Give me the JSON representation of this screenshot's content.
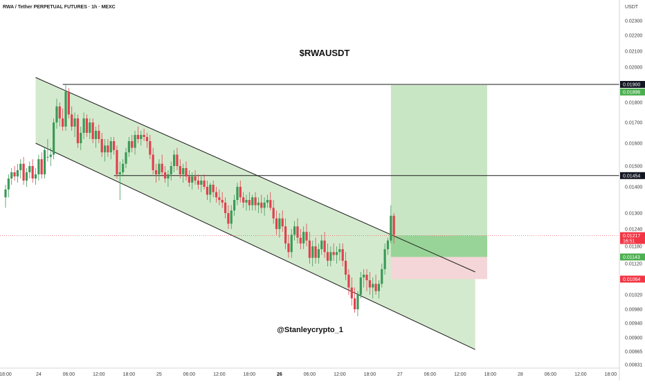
{
  "header": {
    "title": "RWA / Tether PERPETUAL FUTURES · 1h · MEXC",
    "currency": "USDT"
  },
  "chart_data": {
    "type": "candlestick",
    "title": "$RWAUSDT",
    "watermark": "@Stanleycrypto_1",
    "ylim": [
      0.0081,
      0.0241
    ],
    "y_ticks": [
      0.00831,
      0.00865,
      0.009,
      0.0094,
      0.0098,
      0.0102,
      0.0106,
      0.0112,
      0.0118,
      0.0124,
      0.013,
      0.014,
      0.015,
      0.016,
      0.017,
      0.018,
      0.019,
      0.02,
      0.021,
      0.022,
      0.023
    ],
    "y_tick_labels": [
      "0.00831",
      "0.00865",
      "0.00900",
      "0.00940",
      "0.00980",
      "0.01020",
      "0.01060",
      "0.01120",
      "0.01180",
      "0.01240",
      "0.01300",
      "0.01400",
      "0.01500",
      "0.01600",
      "0.01700",
      "0.01800",
      "0.01900",
      "0.02000",
      "0.02100",
      "0.02200",
      "0.02300"
    ],
    "x_labels": [
      {
        "text": "18:00",
        "i": 0,
        "bold": false
      },
      {
        "text": "24",
        "i": 11,
        "bold": false
      },
      {
        "text": "06:00",
        "i": 21,
        "bold": false
      },
      {
        "text": "12:00",
        "i": 31,
        "bold": false
      },
      {
        "text": "18:00",
        "i": 41,
        "bold": false
      },
      {
        "text": "25",
        "i": 51,
        "bold": false
      },
      {
        "text": "06:00",
        "i": 61,
        "bold": false
      },
      {
        "text": "12:00",
        "i": 71,
        "bold": false
      },
      {
        "text": "18:00",
        "i": 81,
        "bold": false
      },
      {
        "text": "26",
        "i": 91,
        "bold": true
      },
      {
        "text": "06:00",
        "i": 101,
        "bold": false
      },
      {
        "text": "12:00",
        "i": 111,
        "bold": false
      },
      {
        "text": "18:00",
        "i": 121,
        "bold": false
      },
      {
        "text": "27",
        "i": 131,
        "bold": false
      },
      {
        "text": "06:00",
        "i": 141,
        "bold": false
      },
      {
        "text": "12:00",
        "i": 151,
        "bold": false
      },
      {
        "text": "18:00",
        "i": 161,
        "bold": false
      },
      {
        "text": "28",
        "i": 171,
        "bold": false
      },
      {
        "text": "06:00",
        "i": 181,
        "bold": false
      },
      {
        "text": "12:00",
        "i": 191,
        "bold": false
      },
      {
        "text": "18:00",
        "i": 201,
        "bold": false
      }
    ],
    "ohlc": [
      {
        "i": 0,
        "o": 0.0136,
        "h": 0.0141,
        "l": 0.0132,
        "c": 0.0139
      },
      {
        "i": 1,
        "o": 0.0139,
        "h": 0.0146,
        "l": 0.0136,
        "c": 0.0144
      },
      {
        "i": 2,
        "o": 0.0144,
        "h": 0.0149,
        "l": 0.0141,
        "c": 0.0147
      },
      {
        "i": 3,
        "o": 0.0147,
        "h": 0.015,
        "l": 0.0143,
        "c": 0.0145
      },
      {
        "i": 4,
        "o": 0.0145,
        "h": 0.0151,
        "l": 0.0142,
        "c": 0.0148
      },
      {
        "i": 5,
        "o": 0.0148,
        "h": 0.0153,
        "l": 0.0144,
        "c": 0.0151
      },
      {
        "i": 6,
        "o": 0.0151,
        "h": 0.0154,
        "l": 0.0141,
        "c": 0.0143
      },
      {
        "i": 7,
        "o": 0.0143,
        "h": 0.0149,
        "l": 0.014,
        "c": 0.0147
      },
      {
        "i": 8,
        "o": 0.0147,
        "h": 0.0152,
        "l": 0.0144,
        "c": 0.015
      },
      {
        "i": 9,
        "o": 0.015,
        "h": 0.0153,
        "l": 0.0142,
        "c": 0.0144
      },
      {
        "i": 10,
        "o": 0.0144,
        "h": 0.0149,
        "l": 0.0141,
        "c": 0.0146
      },
      {
        "i": 11,
        "o": 0.0146,
        "h": 0.0155,
        "l": 0.0143,
        "c": 0.0153
      },
      {
        "i": 12,
        "o": 0.0153,
        "h": 0.0156,
        "l": 0.0144,
        "c": 0.0146
      },
      {
        "i": 13,
        "o": 0.0146,
        "h": 0.0158,
        "l": 0.0144,
        "c": 0.0157
      },
      {
        "i": 14,
        "o": 0.0154,
        "h": 0.0162,
        "l": 0.0152,
        "c": 0.0154
      },
      {
        "i": 15,
        "o": 0.0154,
        "h": 0.0158,
        "l": 0.015,
        "c": 0.0155
      },
      {
        "i": 16,
        "o": 0.0155,
        "h": 0.0172,
        "l": 0.0153,
        "c": 0.017
      },
      {
        "i": 17,
        "o": 0.017,
        "h": 0.0182,
        "l": 0.0167,
        "c": 0.0178
      },
      {
        "i": 18,
        "o": 0.0178,
        "h": 0.018,
        "l": 0.0168,
        "c": 0.0172
      },
      {
        "i": 19,
        "o": 0.0172,
        "h": 0.0177,
        "l": 0.0166,
        "c": 0.0168
      },
      {
        "i": 20,
        "o": 0.0168,
        "h": 0.019,
        "l": 0.0166,
        "c": 0.0186
      },
      {
        "i": 21,
        "o": 0.0186,
        "h": 0.0188,
        "l": 0.0172,
        "c": 0.0174
      },
      {
        "i": 22,
        "o": 0.0174,
        "h": 0.0178,
        "l": 0.0166,
        "c": 0.0168
      },
      {
        "i": 23,
        "o": 0.0168,
        "h": 0.0175,
        "l": 0.0163,
        "c": 0.0172
      },
      {
        "i": 24,
        "o": 0.0172,
        "h": 0.0174,
        "l": 0.0158,
        "c": 0.016
      },
      {
        "i": 25,
        "o": 0.016,
        "h": 0.0168,
        "l": 0.0157,
        "c": 0.0165
      },
      {
        "i": 26,
        "o": 0.0165,
        "h": 0.0175,
        "l": 0.0162,
        "c": 0.0172
      },
      {
        "i": 27,
        "o": 0.0172,
        "h": 0.0174,
        "l": 0.0163,
        "c": 0.0165
      },
      {
        "i": 28,
        "o": 0.0165,
        "h": 0.0172,
        "l": 0.0162,
        "c": 0.017
      },
      {
        "i": 29,
        "o": 0.017,
        "h": 0.0172,
        "l": 0.016,
        "c": 0.0162
      },
      {
        "i": 30,
        "o": 0.0162,
        "h": 0.0168,
        "l": 0.0158,
        "c": 0.0166
      },
      {
        "i": 31,
        "o": 0.0166,
        "h": 0.0169,
        "l": 0.016,
        "c": 0.0162
      },
      {
        "i": 32,
        "o": 0.0162,
        "h": 0.0165,
        "l": 0.0154,
        "c": 0.0156
      },
      {
        "i": 33,
        "o": 0.0156,
        "h": 0.0162,
        "l": 0.0152,
        "c": 0.0159
      },
      {
        "i": 34,
        "o": 0.0159,
        "h": 0.0162,
        "l": 0.0154,
        "c": 0.0156
      },
      {
        "i": 35,
        "o": 0.0156,
        "h": 0.0163,
        "l": 0.0153,
        "c": 0.0161
      },
      {
        "i": 36,
        "o": 0.0161,
        "h": 0.0163,
        "l": 0.0155,
        "c": 0.0157
      },
      {
        "i": 37,
        "o": 0.0157,
        "h": 0.0159,
        "l": 0.0144,
        "c": 0.0146
      },
      {
        "i": 38,
        "o": 0.0146,
        "h": 0.0152,
        "l": 0.0135,
        "c": 0.0147
      },
      {
        "i": 39,
        "o": 0.0147,
        "h": 0.0153,
        "l": 0.0145,
        "c": 0.0151
      },
      {
        "i": 40,
        "o": 0.0151,
        "h": 0.0158,
        "l": 0.0149,
        "c": 0.0156
      },
      {
        "i": 41,
        "o": 0.0156,
        "h": 0.0163,
        "l": 0.0154,
        "c": 0.0161
      },
      {
        "i": 42,
        "o": 0.0161,
        "h": 0.0164,
        "l": 0.0156,
        "c": 0.0158
      },
      {
        "i": 43,
        "o": 0.0158,
        "h": 0.0166,
        "l": 0.0155,
        "c": 0.0164
      },
      {
        "i": 44,
        "o": 0.0164,
        "h": 0.0168,
        "l": 0.016,
        "c": 0.0162
      },
      {
        "i": 45,
        "o": 0.0162,
        "h": 0.0166,
        "l": 0.0159,
        "c": 0.0164
      },
      {
        "i": 46,
        "o": 0.0164,
        "h": 0.0167,
        "l": 0.0161,
        "c": 0.0163
      },
      {
        "i": 47,
        "o": 0.0163,
        "h": 0.0165,
        "l": 0.0158,
        "c": 0.0161
      },
      {
        "i": 48,
        "o": 0.0161,
        "h": 0.0164,
        "l": 0.0153,
        "c": 0.0155
      },
      {
        "i": 49,
        "o": 0.0155,
        "h": 0.0158,
        "l": 0.0146,
        "c": 0.0148
      },
      {
        "i": 50,
        "o": 0.0148,
        "h": 0.0151,
        "l": 0.0142,
        "c": 0.0146
      },
      {
        "i": 51,
        "o": 0.0146,
        "h": 0.0153,
        "l": 0.0143,
        "c": 0.0151
      },
      {
        "i": 52,
        "o": 0.0151,
        "h": 0.0155,
        "l": 0.0145,
        "c": 0.0147
      },
      {
        "i": 53,
        "o": 0.0147,
        "h": 0.015,
        "l": 0.0142,
        "c": 0.0144
      },
      {
        "i": 54,
        "o": 0.0144,
        "h": 0.0148,
        "l": 0.014,
        "c": 0.0146
      },
      {
        "i": 55,
        "o": 0.0146,
        "h": 0.0152,
        "l": 0.0143,
        "c": 0.015
      },
      {
        "i": 56,
        "o": 0.015,
        "h": 0.0157,
        "l": 0.0147,
        "c": 0.0155
      },
      {
        "i": 57,
        "o": 0.0155,
        "h": 0.0158,
        "l": 0.0148,
        "c": 0.015
      },
      {
        "i": 58,
        "o": 0.015,
        "h": 0.0153,
        "l": 0.0144,
        "c": 0.0146
      },
      {
        "i": 59,
        "o": 0.0146,
        "h": 0.0151,
        "l": 0.0142,
        "c": 0.0149
      },
      {
        "i": 60,
        "o": 0.0149,
        "h": 0.0152,
        "l": 0.0143,
        "c": 0.0145
      },
      {
        "i": 61,
        "o": 0.0145,
        "h": 0.0148,
        "l": 0.014,
        "c": 0.0142
      },
      {
        "i": 62,
        "o": 0.0142,
        "h": 0.0147,
        "l": 0.0139,
        "c": 0.0145
      },
      {
        "i": 63,
        "o": 0.0145,
        "h": 0.0148,
        "l": 0.0141,
        "c": 0.0143
      },
      {
        "i": 64,
        "o": 0.0143,
        "h": 0.0146,
        "l": 0.0139,
        "c": 0.0141
      },
      {
        "i": 65,
        "o": 0.0141,
        "h": 0.0145,
        "l": 0.0138,
        "c": 0.0143
      },
      {
        "i": 66,
        "o": 0.0143,
        "h": 0.0146,
        "l": 0.0139,
        "c": 0.014
      },
      {
        "i": 67,
        "o": 0.014,
        "h": 0.0143,
        "l": 0.0135,
        "c": 0.0137
      },
      {
        "i": 68,
        "o": 0.0137,
        "h": 0.0142,
        "l": 0.0134,
        "c": 0.0141
      },
      {
        "i": 69,
        "o": 0.0141,
        "h": 0.0143,
        "l": 0.0136,
        "c": 0.0138
      },
      {
        "i": 70,
        "o": 0.0138,
        "h": 0.014,
        "l": 0.0134,
        "c": 0.0136
      },
      {
        "i": 71,
        "o": 0.0136,
        "h": 0.0139,
        "l": 0.0133,
        "c": 0.0135
      },
      {
        "i": 72,
        "o": 0.0135,
        "h": 0.0138,
        "l": 0.0132,
        "c": 0.0134
      },
      {
        "i": 73,
        "o": 0.0134,
        "h": 0.0136,
        "l": 0.0128,
        "c": 0.013
      },
      {
        "i": 74,
        "o": 0.013,
        "h": 0.0133,
        "l": 0.0124,
        "c": 0.0126
      },
      {
        "i": 75,
        "o": 0.0126,
        "h": 0.0133,
        "l": 0.0124,
        "c": 0.0131
      },
      {
        "i": 76,
        "o": 0.0131,
        "h": 0.0137,
        "l": 0.0129,
        "c": 0.0135
      },
      {
        "i": 77,
        "o": 0.0135,
        "h": 0.0142,
        "l": 0.0133,
        "c": 0.014
      },
      {
        "i": 78,
        "o": 0.014,
        "h": 0.0143,
        "l": 0.0134,
        "c": 0.0136
      },
      {
        "i": 79,
        "o": 0.0136,
        "h": 0.0138,
        "l": 0.0132,
        "c": 0.0134
      },
      {
        "i": 80,
        "o": 0.0134,
        "h": 0.0137,
        "l": 0.0131,
        "c": 0.0135
      },
      {
        "i": 81,
        "o": 0.0135,
        "h": 0.0138,
        "l": 0.0131,
        "c": 0.0133
      },
      {
        "i": 82,
        "o": 0.0133,
        "h": 0.0137,
        "l": 0.0131,
        "c": 0.0136
      },
      {
        "i": 83,
        "o": 0.0136,
        "h": 0.0138,
        "l": 0.0131,
        "c": 0.0133
      },
      {
        "i": 84,
        "o": 0.0133,
        "h": 0.0136,
        "l": 0.013,
        "c": 0.0134
      },
      {
        "i": 85,
        "o": 0.0134,
        "h": 0.0137,
        "l": 0.013,
        "c": 0.0132
      },
      {
        "i": 86,
        "o": 0.0132,
        "h": 0.0136,
        "l": 0.0129,
        "c": 0.0134
      },
      {
        "i": 87,
        "o": 0.0134,
        "h": 0.0137,
        "l": 0.0132,
        "c": 0.0135
      },
      {
        "i": 88,
        "o": 0.0135,
        "h": 0.0138,
        "l": 0.0131,
        "c": 0.0132
      },
      {
        "i": 89,
        "o": 0.0132,
        "h": 0.0135,
        "l": 0.0126,
        "c": 0.0128
      },
      {
        "i": 90,
        "o": 0.0128,
        "h": 0.0131,
        "l": 0.0122,
        "c": 0.0124
      },
      {
        "i": 91,
        "o": 0.0124,
        "h": 0.013,
        "l": 0.0121,
        "c": 0.0128
      },
      {
        "i": 92,
        "o": 0.0128,
        "h": 0.0131,
        "l": 0.0123,
        "c": 0.0125
      },
      {
        "i": 93,
        "o": 0.0125,
        "h": 0.0128,
        "l": 0.0117,
        "c": 0.0119
      },
      {
        "i": 94,
        "o": 0.0119,
        "h": 0.0122,
        "l": 0.0114,
        "c": 0.0116
      },
      {
        "i": 95,
        "o": 0.0116,
        "h": 0.0124,
        "l": 0.0114,
        "c": 0.0122
      },
      {
        "i": 96,
        "o": 0.0122,
        "h": 0.0127,
        "l": 0.012,
        "c": 0.0125
      },
      {
        "i": 97,
        "o": 0.0125,
        "h": 0.0128,
        "l": 0.0119,
        "c": 0.0121
      },
      {
        "i": 98,
        "o": 0.0121,
        "h": 0.0124,
        "l": 0.0117,
        "c": 0.0119
      },
      {
        "i": 99,
        "o": 0.0119,
        "h": 0.0125,
        "l": 0.0117,
        "c": 0.0123
      },
      {
        "i": 100,
        "o": 0.0123,
        "h": 0.0126,
        "l": 0.0118,
        "c": 0.012
      },
      {
        "i": 101,
        "o": 0.012,
        "h": 0.0123,
        "l": 0.0112,
        "c": 0.0114
      },
      {
        "i": 102,
        "o": 0.0114,
        "h": 0.012,
        "l": 0.0111,
        "c": 0.0118
      },
      {
        "i": 103,
        "o": 0.0118,
        "h": 0.0121,
        "l": 0.0112,
        "c": 0.0114
      },
      {
        "i": 104,
        "o": 0.0114,
        "h": 0.0119,
        "l": 0.0112,
        "c": 0.0117
      },
      {
        "i": 105,
        "o": 0.0117,
        "h": 0.0122,
        "l": 0.0115,
        "c": 0.012
      },
      {
        "i": 106,
        "o": 0.012,
        "h": 0.0123,
        "l": 0.0114,
        "c": 0.0116
      },
      {
        "i": 107,
        "o": 0.0116,
        "h": 0.0119,
        "l": 0.0111,
        "c": 0.0113
      },
      {
        "i": 108,
        "o": 0.0113,
        "h": 0.0118,
        "l": 0.0111,
        "c": 0.0116
      },
      {
        "i": 109,
        "o": 0.0116,
        "h": 0.0119,
        "l": 0.0113,
        "c": 0.0115
      },
      {
        "i": 110,
        "o": 0.0115,
        "h": 0.0118,
        "l": 0.0112,
        "c": 0.0116
      },
      {
        "i": 111,
        "o": 0.0116,
        "h": 0.0119,
        "l": 0.0113,
        "c": 0.0117
      },
      {
        "i": 112,
        "o": 0.0117,
        "h": 0.0119,
        "l": 0.0111,
        "c": 0.0113
      },
      {
        "i": 113,
        "o": 0.0113,
        "h": 0.0116,
        "l": 0.0106,
        "c": 0.0108
      },
      {
        "i": 114,
        "o": 0.0108,
        "h": 0.011,
        "l": 0.0102,
        "c": 0.0104
      },
      {
        "i": 115,
        "o": 0.0104,
        "h": 0.0107,
        "l": 0.0099,
        "c": 0.0101
      },
      {
        "i": 116,
        "o": 0.0101,
        "h": 0.0104,
        "l": 0.0097,
        "c": 0.0098
      },
      {
        "i": 117,
        "o": 0.0098,
        "h": 0.0103,
        "l": 0.0096,
        "c": 0.0102
      },
      {
        "i": 118,
        "o": 0.0102,
        "h": 0.0109,
        "l": 0.0101,
        "c": 0.0107
      },
      {
        "i": 119,
        "o": 0.0107,
        "h": 0.011,
        "l": 0.0104,
        "c": 0.0108
      },
      {
        "i": 120,
        "o": 0.0108,
        "h": 0.011,
        "l": 0.0103,
        "c": 0.0106
      },
      {
        "i": 121,
        "o": 0.0106,
        "h": 0.0109,
        "l": 0.0102,
        "c": 0.0104
      },
      {
        "i": 122,
        "o": 0.0104,
        "h": 0.0107,
        "l": 0.0101,
        "c": 0.0105
      },
      {
        "i": 123,
        "o": 0.0105,
        "h": 0.0108,
        "l": 0.0102,
        "c": 0.0103
      },
      {
        "i": 124,
        "o": 0.0103,
        "h": 0.0106,
        "l": 0.0101,
        "c": 0.0105
      },
      {
        "i": 125,
        "o": 0.0105,
        "h": 0.0112,
        "l": 0.0104,
        "c": 0.011
      },
      {
        "i": 126,
        "o": 0.011,
        "h": 0.0119,
        "l": 0.0108,
        "c": 0.0117
      },
      {
        "i": 127,
        "o": 0.0117,
        "h": 0.0121,
        "l": 0.0115,
        "c": 0.012
      },
      {
        "i": 128,
        "o": 0.012,
        "h": 0.0133,
        "l": 0.0119,
        "c": 0.0129
      },
      {
        "i": 129,
        "o": 0.0129,
        "h": 0.013,
        "l": 0.0119,
        "c": 0.0122
      }
    ],
    "channel": {
      "upper": [
        {
          "i": 10,
          "price": 0.0194
        },
        {
          "i": 156,
          "price": 0.0109
        }
      ],
      "lower": [
        {
          "i": 10,
          "price": 0.016
        },
        {
          "i": 156,
          "price": 0.0087
        }
      ]
    },
    "horizontal_lines": [
      0.01454,
      0.019
    ],
    "last_price_line": 0.01217,
    "position": {
      "i_start": 128,
      "i_end": 160,
      "entry": 0.01143,
      "target": 0.01896,
      "stop": 0.01064
    },
    "price_tags": [
      {
        "label": "0.01900",
        "price": 0.019,
        "bg": "#131722",
        "fg": "#ffffff"
      },
      {
        "label": "0.01896",
        "price": 0.01896,
        "bg": "#4caf50",
        "fg": "#ffffff"
      },
      {
        "label": "0.01454",
        "price": 0.01454,
        "bg": "#131722",
        "fg": "#ffffff"
      },
      {
        "label": "0.01217",
        "price": 0.01217,
        "bg": "#f23645",
        "fg": "#ffffff",
        "sub": "16:51"
      },
      {
        "label": "0.01143",
        "price": 0.01143,
        "bg": "#4caf50",
        "fg": "#ffffff"
      },
      {
        "label": "0.01064",
        "price": 0.01064,
        "bg": "#f23645",
        "fg": "#ffffff"
      }
    ],
    "colors": {
      "up": "#3b9a57",
      "down": "#e0414d",
      "channel_fill": "#cfe8c9",
      "target_zone": "#c9e6c4",
      "target_zone_strong": "#8ccf8c",
      "stop_zone": "#f4d6d8"
    }
  }
}
